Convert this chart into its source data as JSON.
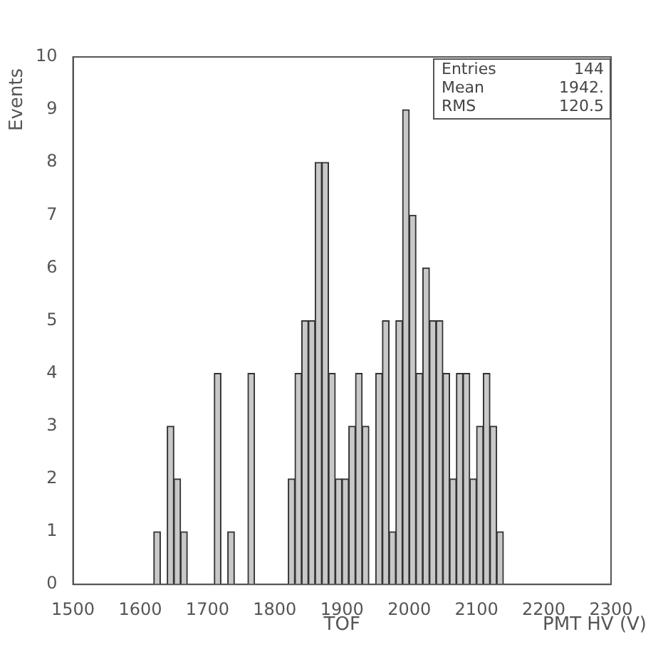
{
  "chart_data": {
    "type": "histogram",
    "xlabel": "PMT HV (V)",
    "ylabel": "Events",
    "bins": [
      1500,
      1510,
      1520,
      1530,
      1540,
      1550,
      1560,
      1570,
      1580,
      1590,
      1600,
      1610,
      1620,
      1630,
      1640,
      1650,
      1660,
      1670,
      1680,
      1690,
      1700,
      1710,
      1720,
      1730,
      1740,
      1750,
      1760,
      1770,
      1780,
      1790,
      1800,
      1810,
      1820,
      1830,
      1840,
      1850,
      1860,
      1870,
      1880,
      1890,
      1900,
      1910,
      1920,
      1930,
      1940,
      1950,
      1960,
      1970,
      1980,
      1990,
      2000,
      2010,
      2020,
      2030,
      2040,
      2050,
      2060,
      2070,
      2080,
      2090,
      2100,
      2110,
      2120,
      2130,
      2140,
      2150,
      2160,
      2170,
      2180,
      2190,
      2200,
      2210,
      2220,
      2230,
      2240,
      2250,
      2260,
      2270,
      2280,
      2290,
      2300
    ],
    "values": [
      0,
      0,
      0,
      0,
      0,
      0,
      0,
      0,
      0,
      0,
      0,
      0,
      1,
      0,
      3,
      2,
      1,
      0,
      0,
      0,
      0,
      4,
      0,
      1,
      0,
      0,
      4,
      0,
      0,
      0,
      0,
      0,
      2,
      4,
      5,
      5,
      8,
      8,
      4,
      2,
      2,
      3,
      4,
      3,
      0,
      4,
      5,
      1,
      5,
      9,
      7,
      4,
      6,
      5,
      5,
      4,
      2,
      4,
      4,
      2,
      3,
      4,
      3,
      1,
      0,
      0,
      0,
      0,
      0,
      0,
      0,
      0,
      0,
      0,
      0,
      0,
      0,
      0,
      0,
      0
    ],
    "color": "#c8c8c8",
    "xlim": [
      1500,
      2300
    ],
    "xticks": [
      1500,
      1600,
      1700,
      1800,
      1900,
      2000,
      2100,
      2200,
      2300
    ],
    "ylim": [
      0,
      10
    ],
    "yticks": [
      0,
      1,
      2,
      3,
      4,
      5,
      6,
      7,
      8,
      9,
      10
    ],
    "annotations": [
      "TOF",
      "Entries 144",
      "Mean 1942.",
      "RMS 120.5"
    ]
  }
}
